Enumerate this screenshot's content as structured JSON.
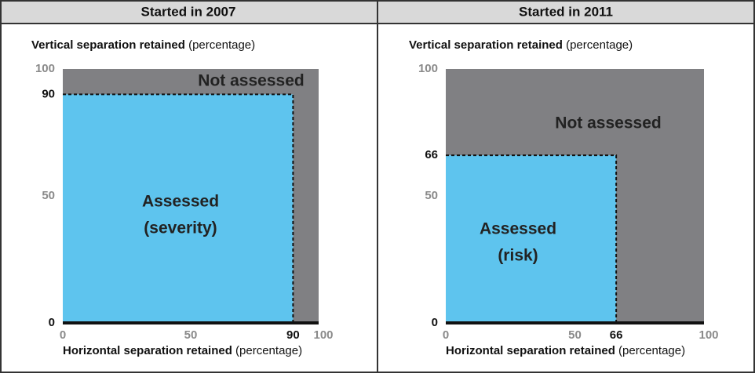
{
  "chart_data": [
    {
      "type": "nested-area",
      "title": "Started in 2007",
      "ylabel": [
        "Vertical separation retained",
        "(percentage)"
      ],
      "xlabel": [
        "Horizontal separation retained",
        "(percentage)"
      ],
      "xlim": [
        0,
        100
      ],
      "ylim": [
        0,
        100
      ],
      "xticks": [
        0,
        50,
        100
      ],
      "yticks": [
        0,
        50,
        100
      ],
      "regions": [
        {
          "name": [
            "Not assessed"
          ],
          "color": "#808083",
          "x": 100,
          "y": 100
        },
        {
          "name": [
            "Assessed",
            "(severity)"
          ],
          "color": "#5ec4ee",
          "x": 90,
          "y": 90
        }
      ]
    },
    {
      "type": "nested-area",
      "title": "Started in 2011",
      "ylabel": [
        "Vertical separation retained",
        "(percentage)"
      ],
      "xlabel": [
        "Horizontal separation retained",
        "(percentage)"
      ],
      "xlim": [
        0,
        100
      ],
      "ylim": [
        0,
        100
      ],
      "xticks": [
        0,
        50,
        100
      ],
      "yticks": [
        0,
        50,
        100
      ],
      "regions": [
        {
          "name": [
            "Not assessed"
          ],
          "color": "#808083",
          "x": 100,
          "y": 100
        },
        {
          "name": [
            "Assessed",
            "(risk)"
          ],
          "color": "#5ec4ee",
          "x": 66,
          "y": 66
        }
      ]
    }
  ]
}
